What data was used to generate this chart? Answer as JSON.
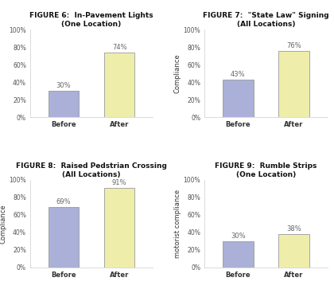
{
  "figures": [
    {
      "title_line1": "FIGURE 6:  In-Pavement Lights",
      "title_line2": "(One Location)",
      "before_val": 30,
      "after_val": 74,
      "ylabel": ""
    },
    {
      "title_line1": "FIGURE 7:  \"State Law\" Signing",
      "title_line2": "(All Locations)",
      "before_val": 43,
      "after_val": 76,
      "ylabel": "Compliance"
    },
    {
      "title_line1": "FIGURE 8:  Raised Pedstrian Crossing",
      "title_line2": "(All Locations)",
      "before_val": 69,
      "after_val": 91,
      "ylabel": "Compliance"
    },
    {
      "title_line1": "FIGURE 9:  Rumble Strips",
      "title_line2": "(One Location)",
      "before_val": 30,
      "after_val": 38,
      "ylabel": "motorist compliance"
    }
  ],
  "before_color": "#aab0d8",
  "after_color": "#eeeeaa",
  "bar_edge_color": "#999999",
  "yticks": [
    0,
    20,
    40,
    60,
    80,
    100
  ],
  "ytick_labels": [
    "0%",
    "20%",
    "40%",
    "60%",
    "80%",
    "100%"
  ],
  "xlabel_before": "Before",
  "xlabel_after": "After",
  "bar_width": 0.55,
  "title_fontsize": 6.5,
  "subtitle_fontsize": 6.0,
  "label_fontsize": 6.0,
  "tick_fontsize": 5.5,
  "value_fontsize": 6.0,
  "bg_color": "#ffffff"
}
